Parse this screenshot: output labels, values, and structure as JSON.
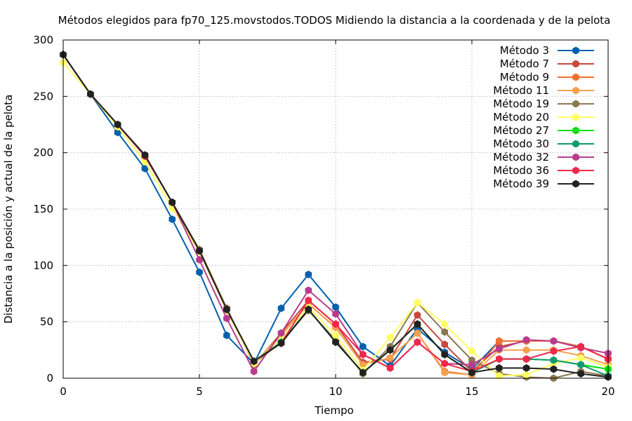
{
  "chart_data": {
    "type": "line",
    "title": "Métodos elegidos para fp70_125.movstodos.TODOS Midiendo la distancia a la coordenada y de la pelota",
    "xlabel": "Tiempo",
    "ylabel": "Distancia a la posición y actual de la pelota",
    "xlim": [
      0,
      20
    ],
    "ylim": [
      0,
      300
    ],
    "xticks": [
      0,
      5,
      10,
      15,
      20
    ],
    "yticks": [
      0,
      50,
      100,
      150,
      200,
      250,
      300
    ],
    "grid": true,
    "legend_position": "top-right",
    "x": [
      0,
      1,
      2,
      3,
      4,
      5,
      6,
      7,
      8,
      9,
      10,
      11,
      12,
      13,
      14,
      15,
      16,
      17,
      18,
      19,
      20
    ],
    "series": [
      {
        "name": "Método 3",
        "color": "#0060ad",
        "values": [
          287,
          252,
          218,
          186,
          141,
          94,
          38,
          13,
          62,
          92,
          63,
          28,
          11,
          44,
          23,
          8,
          33,
          33,
          33,
          28,
          17
        ]
      },
      {
        "name": "Método 7",
        "color": "#c8483c",
        "values": [
          287,
          252,
          225,
          197,
          156,
          114,
          62,
          12,
          40,
          69,
          48,
          14,
          17,
          56,
          30,
          6,
          28,
          33,
          33,
          28,
          17
        ]
      },
      {
        "name": "Método 9",
        "color": "#f07030",
        "values": [
          287,
          252,
          225,
          197,
          156,
          114,
          62,
          13,
          38,
          66,
          45,
          12,
          18,
          40,
          6,
          3,
          33,
          33,
          33,
          28,
          17
        ]
      },
      {
        "name": "Método 11",
        "color": "#f5a050",
        "values": [
          287,
          252,
          225,
          197,
          156,
          114,
          61,
          13,
          38,
          66,
          45,
          12,
          18,
          40,
          5,
          3,
          25,
          25,
          25,
          20,
          12
        ]
      },
      {
        "name": "Método 19",
        "color": "#8c7850",
        "values": [
          287,
          252,
          225,
          197,
          156,
          114,
          62,
          13,
          32,
          60,
          34,
          4,
          28,
          67,
          41,
          16,
          4,
          1,
          0,
          6,
          2
        ]
      },
      {
        "name": "Método 20",
        "color": "#ffff60",
        "values": [
          280,
          252,
          223,
          192,
          151,
          112,
          60,
          13,
          35,
          63,
          38,
          7,
          36,
          67,
          48,
          24,
          2,
          3,
          13,
          18,
          10
        ]
      },
      {
        "name": "Método 27",
        "color": "#00e000",
        "values": [
          287,
          252,
          225,
          197,
          156,
          113,
          61,
          15,
          32,
          61,
          32,
          5,
          25,
          48,
          21,
          5,
          17,
          17,
          16,
          12,
          8
        ]
      },
      {
        "name": "Método 30",
        "color": "#119a6f",
        "values": [
          287,
          252,
          225,
          197,
          156,
          113,
          61,
          15,
          32,
          61,
          32,
          5,
          25,
          48,
          21,
          5,
          17,
          17,
          16,
          12,
          2
        ]
      },
      {
        "name": "Método 32",
        "color": "#b83c8c",
        "values": [
          287,
          252,
          225,
          197,
          156,
          105,
          53,
          6,
          40,
          78,
          57,
          21,
          9,
          32,
          13,
          12,
          26,
          34,
          33,
          27,
          22
        ]
      },
      {
        "name": "Método 36",
        "color": "#f0284c",
        "values": [
          287,
          252,
          225,
          197,
          156,
          113,
          61,
          15,
          31,
          69,
          48,
          21,
          9,
          32,
          13,
          6,
          17,
          17,
          24,
          28,
          17
        ]
      },
      {
        "name": "Método 39",
        "color": "#222222",
        "values": [
          287,
          252,
          225,
          198,
          156,
          113,
          61,
          15,
          31,
          61,
          32,
          5,
          25,
          48,
          21,
          5,
          9,
          9,
          8,
          4,
          1
        ]
      }
    ]
  }
}
